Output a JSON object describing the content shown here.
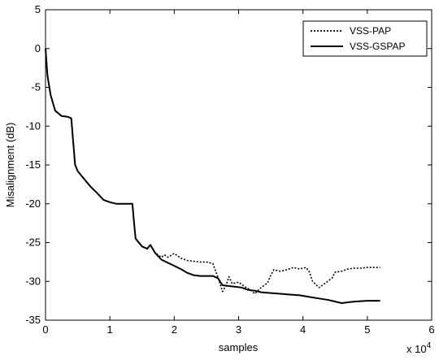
{
  "chart_data": {
    "type": "line",
    "xlabel": "samples",
    "ylabel": "Misalignment (dB)",
    "x_multiplier_label": "x 10",
    "x_multiplier_exponent": "4",
    "xlim": [
      0,
      60000
    ],
    "ylim": [
      -35,
      5
    ],
    "x_ticks": [
      0,
      10000,
      20000,
      30000,
      40000,
      50000,
      60000
    ],
    "x_tick_labels": [
      "0",
      "1",
      "2",
      "3",
      "4",
      "5",
      "6"
    ],
    "y_ticks": [
      5,
      0,
      -5,
      -10,
      -15,
      -20,
      -25,
      -30,
      -35
    ],
    "y_tick_labels": [
      "5",
      "0",
      "-5",
      "-10",
      "-15",
      "-20",
      "-25",
      "-30",
      "-35"
    ],
    "grid": false,
    "legend_position": "top-right",
    "series": [
      {
        "name": "VSS-PAP",
        "style": "dotted",
        "color": "#000000",
        "points": [
          [
            0,
            0
          ],
          [
            300,
            -3.5
          ],
          [
            800,
            -6
          ],
          [
            1500,
            -8
          ],
          [
            2500,
            -8.7
          ],
          [
            3500,
            -8.8
          ],
          [
            4000,
            -9
          ],
          [
            4300,
            -12
          ],
          [
            4600,
            -15
          ],
          [
            5000,
            -15.8
          ],
          [
            6000,
            -16.8
          ],
          [
            7000,
            -17.8
          ],
          [
            8000,
            -18.6
          ],
          [
            9000,
            -19.5
          ],
          [
            10000,
            -19.8
          ],
          [
            11000,
            -20
          ],
          [
            12000,
            -20
          ],
          [
            13500,
            -20
          ],
          [
            13700,
            -22
          ],
          [
            14000,
            -24.5
          ],
          [
            15000,
            -25.5
          ],
          [
            15800,
            -25.8
          ],
          [
            16300,
            -25.3
          ],
          [
            17000,
            -26.3
          ],
          [
            18000,
            -26.9
          ],
          [
            18500,
            -26.6
          ],
          [
            19000,
            -26.9
          ],
          [
            20000,
            -26.4
          ],
          [
            21000,
            -27
          ],
          [
            22000,
            -27.3
          ],
          [
            23000,
            -27.4
          ],
          [
            24000,
            -27.5
          ],
          [
            25000,
            -27.5
          ],
          [
            26000,
            -27.7
          ],
          [
            26800,
            -29.5
          ],
          [
            27500,
            -31.3
          ],
          [
            28000,
            -30.6
          ],
          [
            28500,
            -29.4
          ],
          [
            29000,
            -30.3
          ],
          [
            30000,
            -30.1
          ],
          [
            31000,
            -30.7
          ],
          [
            32000,
            -31.2
          ],
          [
            32500,
            -31.6
          ],
          [
            33500,
            -30.8
          ],
          [
            34500,
            -30.2
          ],
          [
            35000,
            -29.2
          ],
          [
            35500,
            -28.5
          ],
          [
            36500,
            -28.7
          ],
          [
            37500,
            -28.5
          ],
          [
            38500,
            -28.2
          ],
          [
            39500,
            -28.4
          ],
          [
            40500,
            -28.2
          ],
          [
            41000,
            -28.8
          ],
          [
            41500,
            -30.0
          ],
          [
            42500,
            -30.8
          ],
          [
            43500,
            -30.2
          ],
          [
            44500,
            -29.6
          ],
          [
            45000,
            -28.8
          ],
          [
            46000,
            -28.7
          ],
          [
            47000,
            -28.4
          ],
          [
            48000,
            -28.3
          ],
          [
            49000,
            -28.3
          ],
          [
            50000,
            -28.2
          ],
          [
            51000,
            -28.2
          ],
          [
            52000,
            -28.2
          ]
        ]
      },
      {
        "name": "VSS-GSPAP",
        "style": "solid",
        "color": "#000000",
        "points": [
          [
            0,
            0
          ],
          [
            300,
            -3.5
          ],
          [
            800,
            -6
          ],
          [
            1500,
            -8
          ],
          [
            2500,
            -8.7
          ],
          [
            3500,
            -8.8
          ],
          [
            4000,
            -9
          ],
          [
            4300,
            -12
          ],
          [
            4600,
            -15
          ],
          [
            5000,
            -15.8
          ],
          [
            6000,
            -16.8
          ],
          [
            7000,
            -17.8
          ],
          [
            8000,
            -18.6
          ],
          [
            9000,
            -19.5
          ],
          [
            10000,
            -19.8
          ],
          [
            11000,
            -20
          ],
          [
            12000,
            -20
          ],
          [
            13500,
            -20
          ],
          [
            13700,
            -22
          ],
          [
            14000,
            -24.5
          ],
          [
            15000,
            -25.5
          ],
          [
            15800,
            -25.8
          ],
          [
            16300,
            -25.3
          ],
          [
            17000,
            -26.3
          ],
          [
            18000,
            -27.2
          ],
          [
            19000,
            -27.6
          ],
          [
            20000,
            -28.0
          ],
          [
            21000,
            -28.4
          ],
          [
            22000,
            -28.9
          ],
          [
            23000,
            -29.2
          ],
          [
            24000,
            -29.3
          ],
          [
            25000,
            -29.3
          ],
          [
            26000,
            -29.3
          ],
          [
            26800,
            -29.6
          ],
          [
            27500,
            -30.5
          ],
          [
            28500,
            -30.6
          ],
          [
            29500,
            -30.7
          ],
          [
            30500,
            -30.8
          ],
          [
            31500,
            -31.1
          ],
          [
            32500,
            -31.2
          ],
          [
            33500,
            -31.4
          ],
          [
            35000,
            -31.5
          ],
          [
            36500,
            -31.6
          ],
          [
            38000,
            -31.7
          ],
          [
            39500,
            -31.8
          ],
          [
            41000,
            -32.0
          ],
          [
            42500,
            -32.2
          ],
          [
            44000,
            -32.4
          ],
          [
            45000,
            -32.6
          ],
          [
            46000,
            -32.8
          ],
          [
            47000,
            -32.7
          ],
          [
            48000,
            -32.6
          ],
          [
            50000,
            -32.5
          ],
          [
            52000,
            -32.5
          ]
        ]
      }
    ]
  }
}
